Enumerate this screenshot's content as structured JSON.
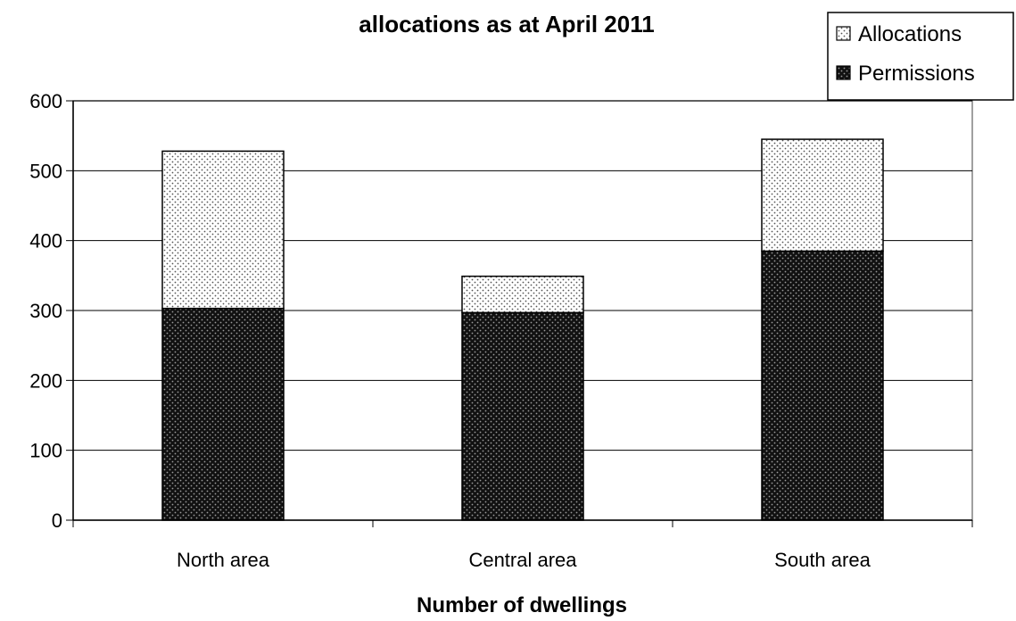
{
  "chart_data": {
    "type": "bar",
    "stacked": true,
    "title": "allocations as at April 2011",
    "xlabel": "Number of dwellings",
    "ylabel": "",
    "categories": [
      "North area",
      "Central area",
      "South area"
    ],
    "series": [
      {
        "name": "Permissions",
        "values": [
          303,
          297,
          385
        ],
        "pattern": "dark-dots"
      },
      {
        "name": "Allocations",
        "values": [
          225,
          52,
          160
        ],
        "pattern": "light-dots"
      }
    ],
    "ylim": [
      0,
      600
    ],
    "yticks": [
      "0",
      "100",
      "200",
      "300",
      "400",
      "500",
      "600"
    ],
    "grid": true,
    "legend": "top-right",
    "legend_order": [
      "Allocations",
      "Permissions"
    ]
  }
}
